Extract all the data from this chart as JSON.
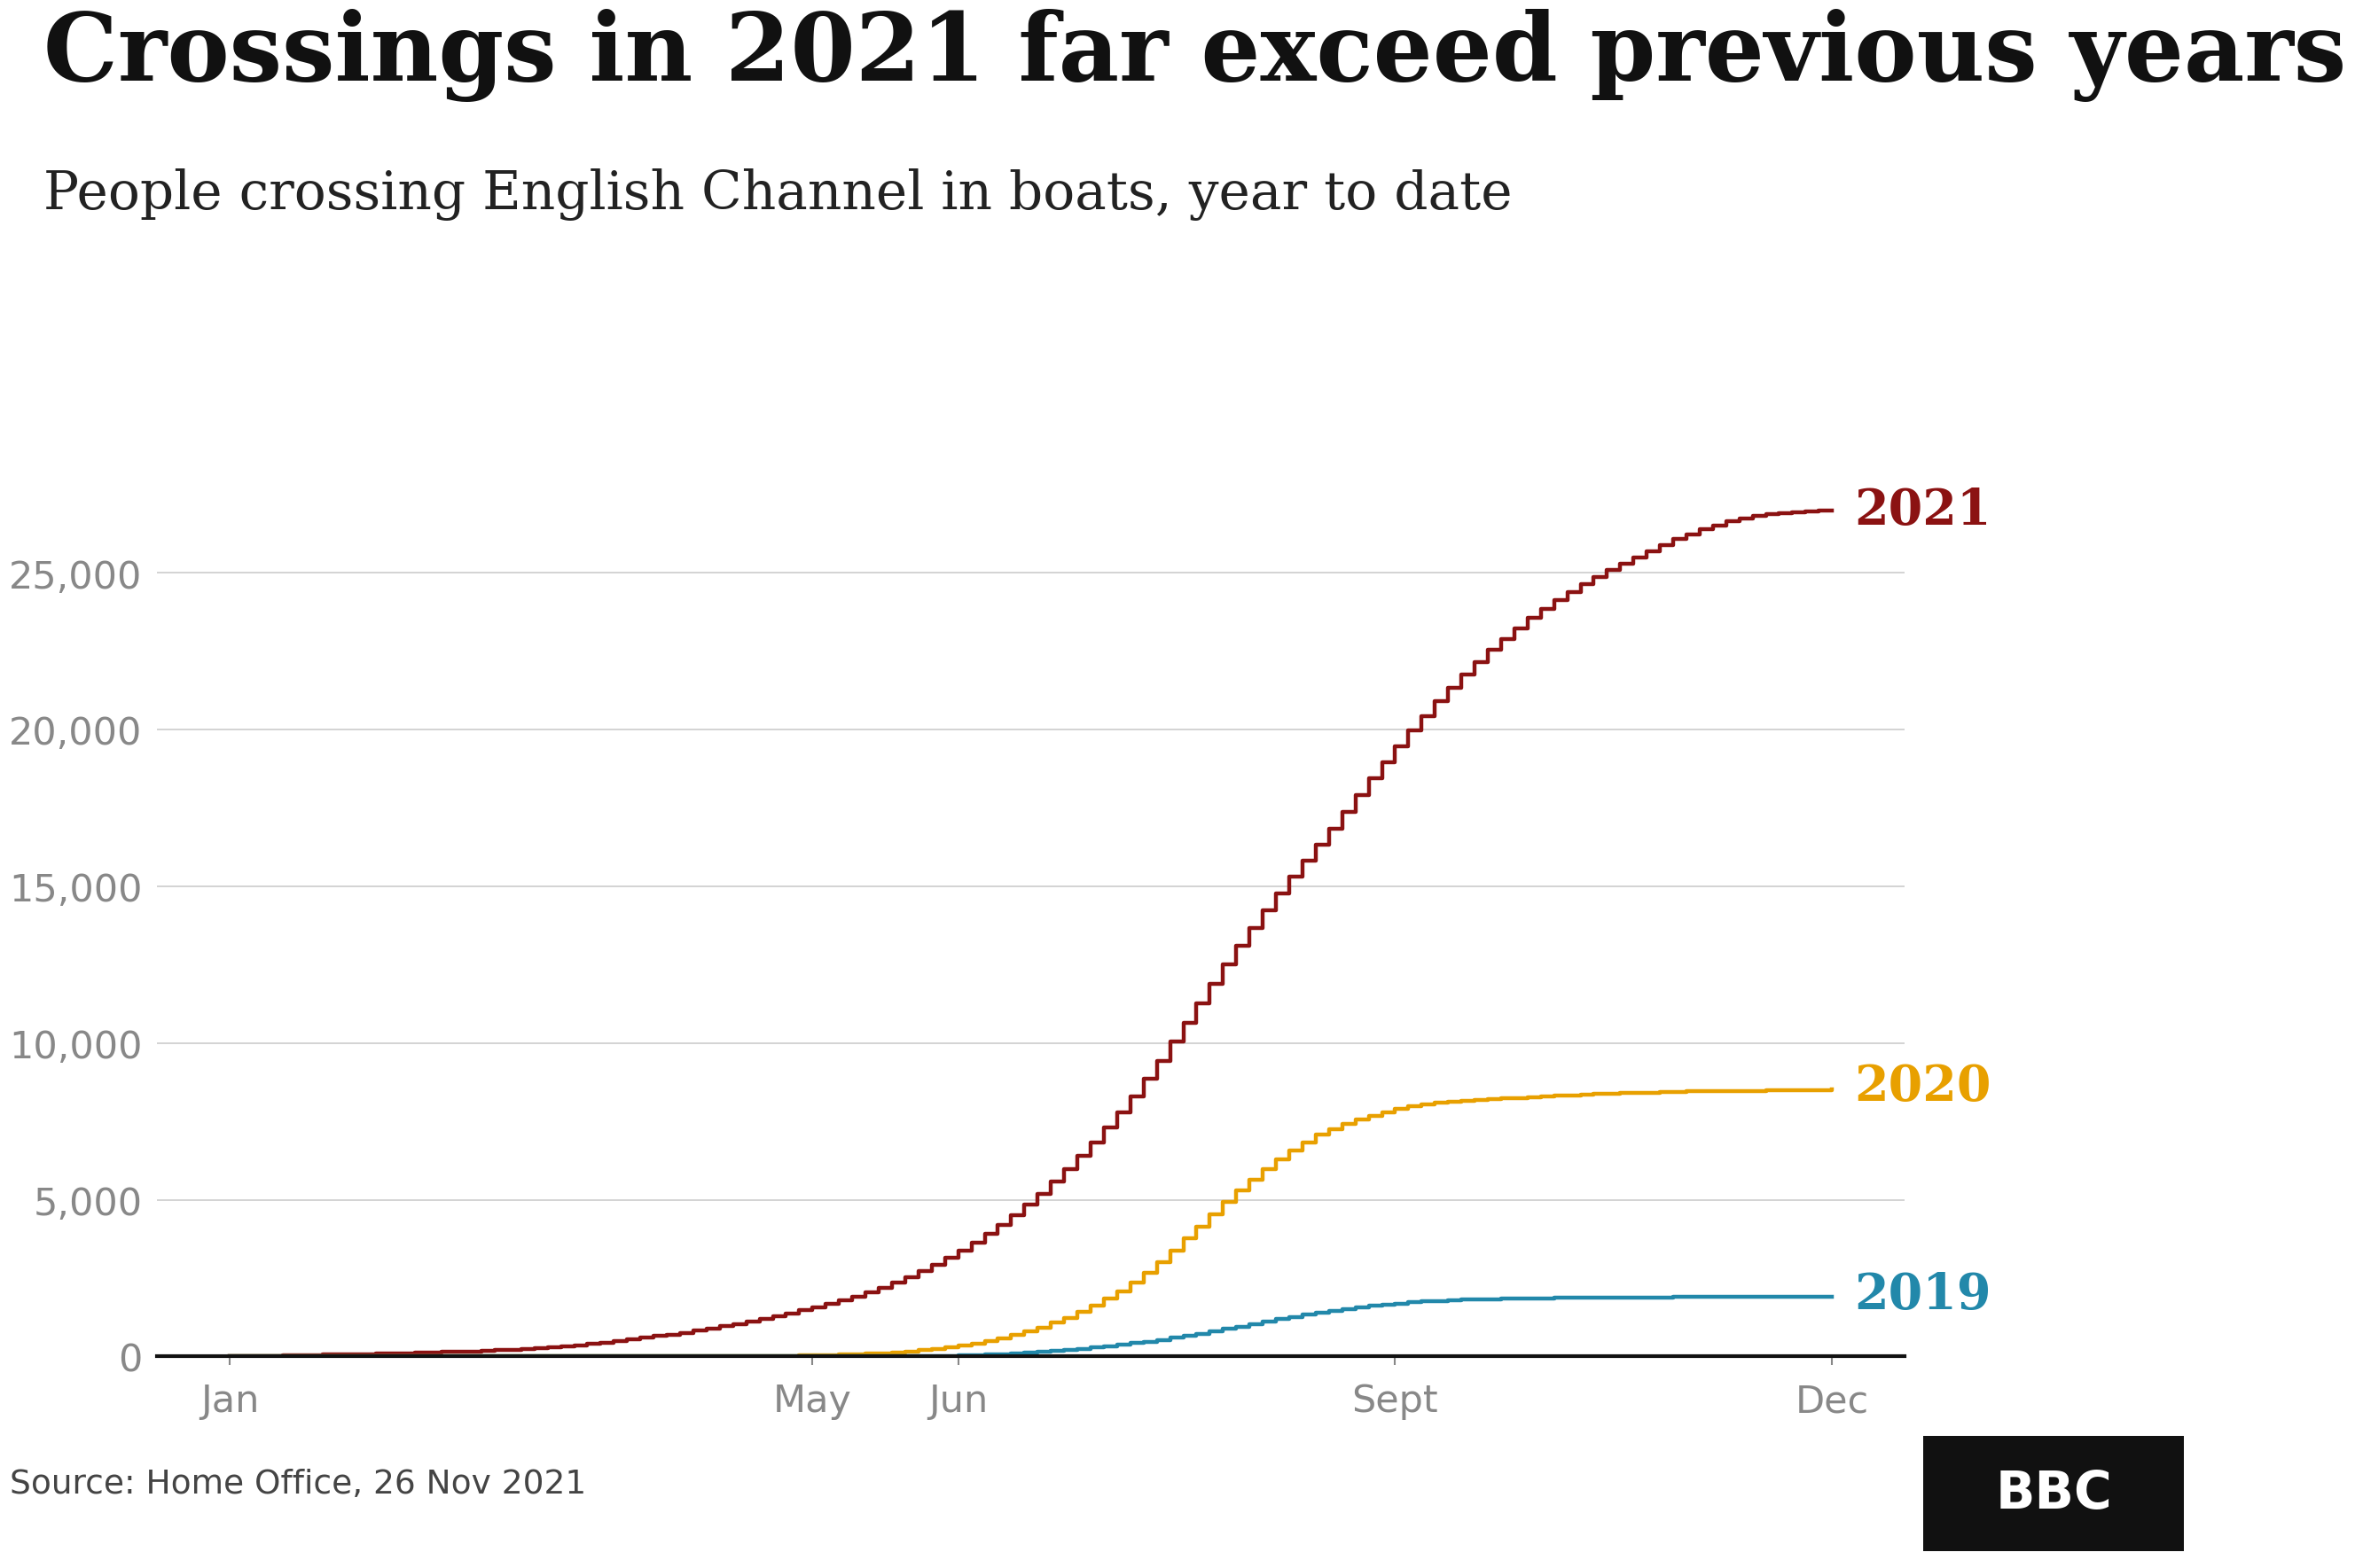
{
  "title": "Crossings in 2021 far exceed previous years",
  "subtitle": "People crossing English Channel in boats, year to date",
  "source": "Source: Home Office, 26 Nov 2021",
  "background_color": "#ffffff",
  "title_color": "#111111",
  "subtitle_color": "#222222",
  "source_color": "#444444",
  "grid_color": "#cccccc",
  "tick_label_color": "#888888",
  "ylim": [
    0,
    28000
  ],
  "yticks": [
    0,
    5000,
    10000,
    15000,
    20000,
    25000
  ],
  "x_tick_labels": [
    "Jan",
    "May",
    "Jun",
    "Sept",
    "Dec"
  ],
  "x_tick_positions": [
    1,
    5,
    6,
    9,
    12
  ],
  "series_2021_color": "#8b1212",
  "series_2020_color": "#e8a000",
  "series_2019_color": "#2288aa",
  "series_2021_label_color": "#8b1212",
  "series_2020_label_color": "#e8a000",
  "series_2019_label_color": "#2288aa",
  "bbc_bg": "#111111",
  "bbc_fg": "#ffffff",
  "series_2021": [
    0,
    10,
    20,
    25,
    30,
    40,
    50,
    55,
    60,
    70,
    80,
    90,
    100,
    110,
    120,
    130,
    140,
    150,
    165,
    180,
    200,
    220,
    240,
    265,
    290,
    320,
    360,
    400,
    440,
    490,
    540,
    600,
    650,
    700,
    760,
    820,
    890,
    960,
    1040,
    1120,
    1200,
    1290,
    1380,
    1480,
    1580,
    1690,
    1800,
    1920,
    2060,
    2200,
    2360,
    2530,
    2720,
    2920,
    3140,
    3380,
    3640,
    3920,
    4210,
    4520,
    4840,
    5200,
    5580,
    5980,
    6400,
    6840,
    7300,
    7790,
    8310,
    8860,
    9440,
    10040,
    10650,
    11270,
    11890,
    12500,
    13100,
    13680,
    14240,
    14780,
    15310,
    15830,
    16340,
    16850,
    17380,
    17910,
    18440,
    18970,
    19480,
    19970,
    20440,
    20900,
    21340,
    21760,
    22160,
    22540,
    22900,
    23240,
    23560,
    23860,
    24140,
    24400,
    24640,
    24870,
    25090,
    25300,
    25500,
    25700,
    25900,
    26080,
    26240,
    26390,
    26520,
    26640,
    26740,
    26820,
    26880,
    26920,
    26950,
    26970,
    26985,
    27000
  ],
  "series_2020": [
    0,
    0,
    0,
    0,
    0,
    0,
    0,
    0,
    0,
    0,
    0,
    0,
    0,
    0,
    0,
    0,
    0,
    0,
    0,
    0,
    0,
    0,
    0,
    0,
    0,
    0,
    0,
    0,
    0,
    0,
    0,
    0,
    0,
    0,
    0,
    0,
    0,
    0,
    0,
    0,
    0,
    10,
    20,
    30,
    40,
    50,
    60,
    75,
    90,
    110,
    135,
    165,
    200,
    240,
    290,
    350,
    420,
    500,
    590,
    690,
    800,
    930,
    1080,
    1240,
    1420,
    1620,
    1840,
    2090,
    2370,
    2680,
    3020,
    3380,
    3760,
    4150,
    4540,
    4930,
    5300,
    5650,
    5980,
    6290,
    6580,
    6840,
    7070,
    7260,
    7420,
    7560,
    7680,
    7790,
    7890,
    7975,
    8045,
    8100,
    8140,
    8170,
    8195,
    8215,
    8235,
    8255,
    8275,
    8295,
    8315,
    8335,
    8355,
    8375,
    8390,
    8400,
    8415,
    8425,
    8435,
    8445,
    8455,
    8460,
    8465,
    8470,
    8475,
    8480,
    8485,
    8490,
    8495,
    8500,
    8510,
    8520
  ],
  "series_2019": [
    0,
    0,
    0,
    0,
    0,
    0,
    0,
    0,
    0,
    0,
    0,
    0,
    0,
    0,
    0,
    0,
    0,
    0,
    0,
    0,
    0,
    0,
    0,
    0,
    0,
    0,
    0,
    0,
    0,
    0,
    0,
    0,
    0,
    0,
    0,
    0,
    0,
    0,
    0,
    0,
    0,
    0,
    0,
    0,
    0,
    0,
    0,
    0,
    0,
    0,
    0,
    0,
    5,
    10,
    18,
    28,
    40,
    55,
    72,
    92,
    115,
    142,
    172,
    205,
    242,
    282,
    325,
    372,
    422,
    476,
    534,
    596,
    662,
    731,
    803,
    878,
    955,
    1033,
    1111,
    1189,
    1265,
    1337,
    1405,
    1467,
    1523,
    1573,
    1618,
    1658,
    1693,
    1724,
    1751,
    1774,
    1793,
    1808,
    1821,
    1832,
    1841,
    1849,
    1856,
    1862,
    1867,
    1872,
    1876,
    1880,
    1883,
    1886,
    1888,
    1890,
    1892,
    1894,
    1896,
    1897,
    1898,
    1899,
    1900,
    1902,
    1904,
    1906,
    1908,
    1910,
    1912,
    1915
  ]
}
